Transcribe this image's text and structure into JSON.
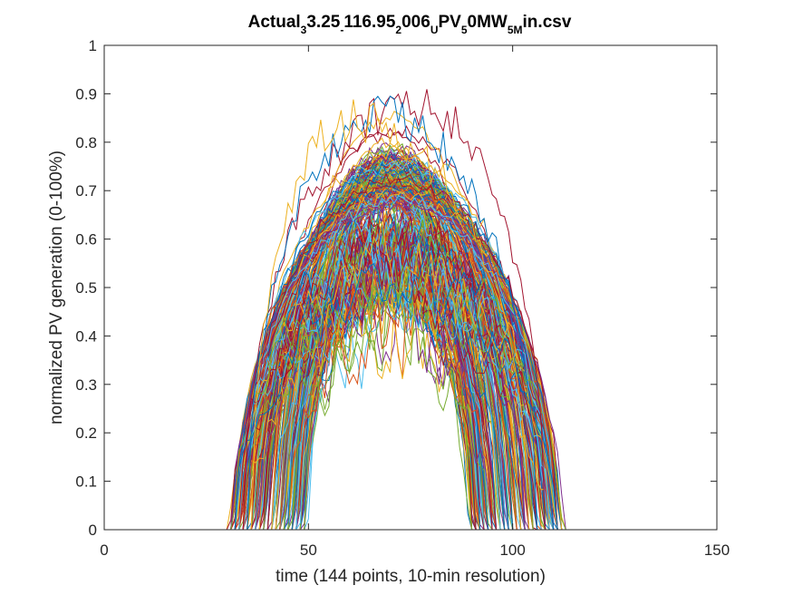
{
  "chart_data": {
    "type": "line",
    "title_parts": [
      {
        "text": "Actual",
        "sub": false
      },
      {
        "text": "3",
        "sub": true
      },
      {
        "text": "3.25",
        "sub": false
      },
      {
        "text": "-",
        "sub": true
      },
      {
        "text": "116.95",
        "sub": false
      },
      {
        "text": "2",
        "sub": true
      },
      {
        "text": "006",
        "sub": false
      },
      {
        "text": "U",
        "sub": true
      },
      {
        "text": "PV",
        "sub": false
      },
      {
        "text": "5",
        "sub": true
      },
      {
        "text": "0MW",
        "sub": false
      },
      {
        "text": "5M",
        "sub": true
      },
      {
        "text": "in.csv",
        "sub": false
      }
    ],
    "xlabel": "time (144 points, 10-min resolution)",
    "ylabel": "normalized PV generation (0-100%)",
    "xlim": [
      0,
      150
    ],
    "ylim": [
      0,
      1
    ],
    "xticks": [
      "0",
      "50",
      "100",
      "150"
    ],
    "yticks": [
      "0",
      "0.1",
      "0.2",
      "0.3",
      "0.4",
      "0.5",
      "0.6",
      "0.7",
      "0.8",
      "0.9",
      "1"
    ],
    "grid": false,
    "x_points": 144,
    "day_profile": {
      "zero_before_approx": 30,
      "zero_after_approx": 114,
      "typical_peak": 0.78,
      "max_peak": 0.92,
      "max_peak_x_approx": 76
    },
    "series_count_approx": 365,
    "series_colors": [
      "#0072BD",
      "#D95319",
      "#EDB120",
      "#7E2F8E",
      "#77AC30",
      "#4DBEEE",
      "#A2142F"
    ]
  }
}
